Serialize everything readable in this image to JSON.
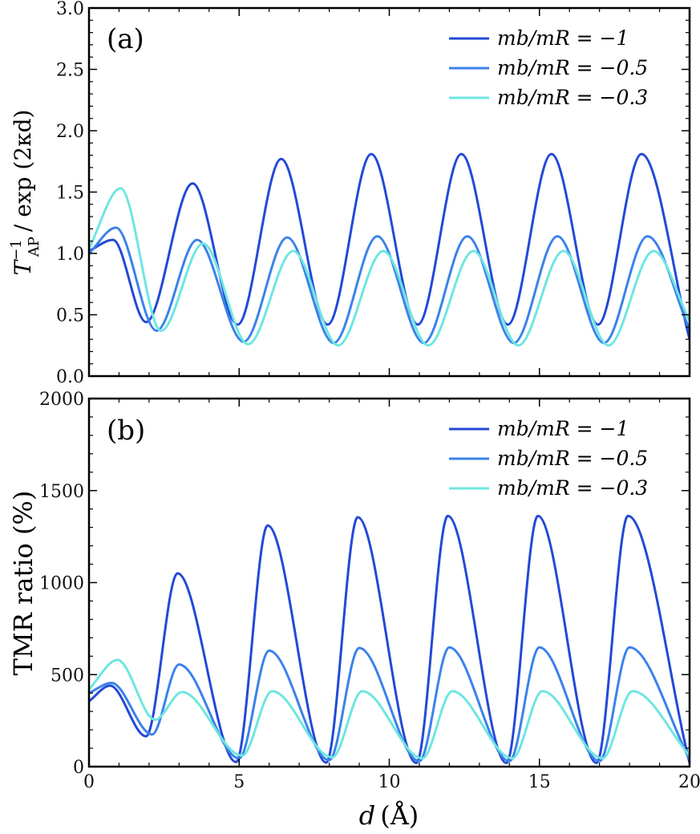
{
  "chart_data": [
    {
      "type": "line",
      "panel_label": "(a)",
      "ylabel": "T_AP^{-1} / exp(2κd)",
      "ylabel_parts": {
        "base": "T",
        "sup": "−1",
        "sub": "AP",
        "rest": "/ exp (2κd)"
      },
      "xlim": [
        0,
        20
      ],
      "ylim": [
        0.0,
        3.0
      ],
      "xticks": [
        0,
        5,
        10,
        15,
        20
      ],
      "yticks": [
        0.0,
        0.5,
        1.0,
        1.5,
        2.0,
        2.5,
        3.0
      ],
      "ytick_labels": [
        "0.0",
        "0.5",
        "1.0",
        "1.5",
        "2.0",
        "2.5",
        "3.0"
      ],
      "legend_position": "top-right",
      "series": [
        {
          "name": "m_b/m_R = −1",
          "legend_text": "mb/mR = −1",
          "color": "#2349d6",
          "x": [
            0,
            0.8,
            1.9,
            3.45,
            4.95,
            6.4,
            7.95,
            9.4,
            10.95,
            12.4,
            13.95,
            15.4,
            16.95,
            18.4,
            20
          ],
          "y": [
            1.02,
            1.11,
            0.44,
            1.57,
            0.42,
            1.77,
            0.42,
            1.81,
            0.42,
            1.81,
            0.42,
            1.81,
            0.42,
            1.81,
            0.3
          ]
        },
        {
          "name": "m_b/m_R = −0.5",
          "legend_text": "mb/mR = −0.5",
          "color": "#3a82ea",
          "x": [
            0,
            0.9,
            2.25,
            3.6,
            5.15,
            6.6,
            8.15,
            9.6,
            11.15,
            12.6,
            14.15,
            15.6,
            17.15,
            18.6,
            20
          ],
          "y": [
            1.0,
            1.21,
            0.37,
            1.11,
            0.28,
            1.13,
            0.27,
            1.14,
            0.27,
            1.14,
            0.27,
            1.14,
            0.27,
            1.14,
            0.38
          ]
        },
        {
          "name": "m_b/m_R = −0.3",
          "legend_text": "mb/mR = −0.3",
          "color": "#6ee6e0",
          "x": [
            0,
            1.05,
            2.4,
            3.8,
            5.3,
            6.8,
            8.3,
            9.8,
            11.3,
            12.8,
            14.3,
            15.8,
            17.3,
            18.8,
            20
          ],
          "y": [
            1.04,
            1.53,
            0.37,
            1.08,
            0.26,
            1.02,
            0.25,
            1.02,
            0.25,
            1.02,
            0.25,
            1.02,
            0.25,
            1.02,
            0.45
          ]
        }
      ]
    },
    {
      "type": "line",
      "panel_label": "(b)",
      "ylabel": "TMR ratio (%)",
      "xlabel": "d (Å)",
      "xlabel_parts": {
        "var": "d",
        "unit": "(Å)"
      },
      "xlim": [
        0,
        20
      ],
      "ylim": [
        0,
        2000
      ],
      "xticks": [
        0,
        5,
        10,
        15,
        20
      ],
      "xtick_labels": [
        "0",
        "5",
        "10",
        "15",
        "20"
      ],
      "yticks": [
        0,
        500,
        1000,
        1500,
        2000
      ],
      "ytick_labels": [
        "0",
        "500",
        "1000",
        "1500",
        "2000"
      ],
      "legend_position": "top-right",
      "series": [
        {
          "name": "m_b/m_R = −1",
          "legend_text": "mb/mR = −1",
          "color": "#2349d6",
          "x": [
            0,
            0.7,
            1.9,
            2.95,
            4.9,
            5.95,
            7.9,
            8.95,
            10.9,
            11.95,
            13.9,
            14.95,
            16.9,
            17.95,
            20
          ],
          "y": [
            355,
            440,
            165,
            1050,
            25,
            1310,
            22,
            1355,
            20,
            1362,
            20,
            1362,
            20,
            1362,
            20
          ]
        },
        {
          "name": "m_b/m_R = −0.5",
          "legend_text": "mb/mR = −0.5",
          "color": "#3a82ea",
          "x": [
            0,
            0.75,
            2.1,
            3.0,
            5.0,
            6.0,
            8.0,
            9.0,
            11.0,
            12.0,
            14.0,
            15.0,
            17.0,
            18.0,
            20
          ],
          "y": [
            400,
            455,
            175,
            555,
            45,
            630,
            35,
            645,
            30,
            648,
            30,
            648,
            30,
            648,
            40
          ]
        },
        {
          "name": "m_b/m_R = −0.3",
          "legend_text": "mb/mR = −0.3",
          "color": "#6ee6e0",
          "x": [
            0,
            0.95,
            2.2,
            3.1,
            5.1,
            6.1,
            8.1,
            9.1,
            11.1,
            12.1,
            14.1,
            15.1,
            17.1,
            18.1,
            20
          ],
          "y": [
            420,
            580,
            255,
            405,
            60,
            410,
            50,
            410,
            45,
            410,
            45,
            410,
            45,
            410,
            60
          ]
        }
      ]
    }
  ]
}
